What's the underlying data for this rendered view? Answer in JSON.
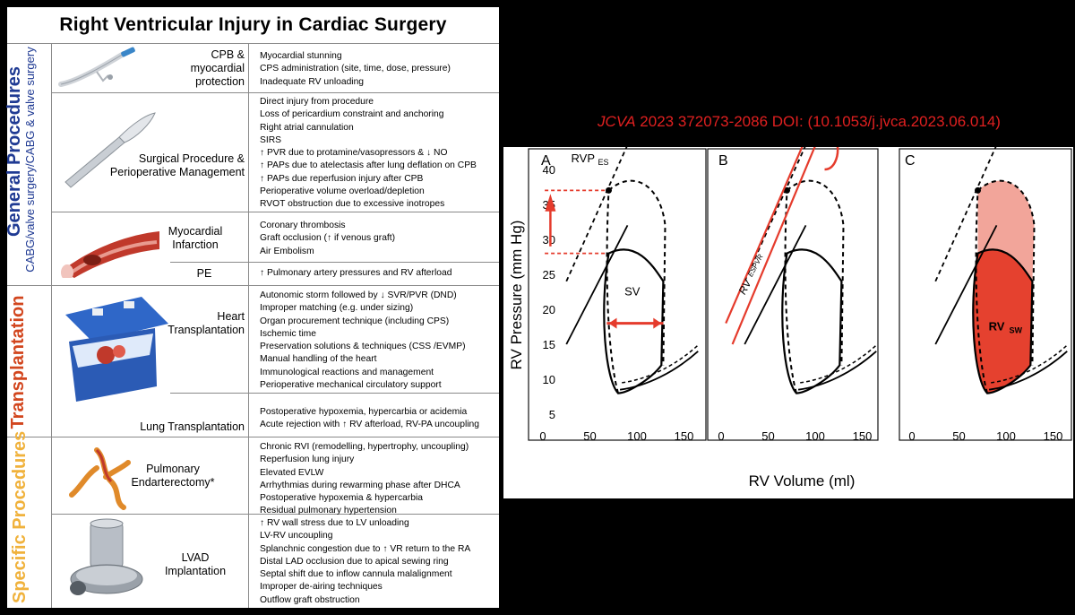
{
  "title": "Right  Ventricular  Injury in Cardiac Surgery",
  "groups": [
    {
      "label": "General Procedures",
      "sublabel": "CABG/valve surgery/CABG & valve surgery",
      "color": "#1f3a93"
    },
    {
      "label": "Transplantation",
      "sublabel": "",
      "color": "#d2461e"
    },
    {
      "label": "Specific Procedures",
      "sublabel": "",
      "color": "#f0b23c"
    }
  ],
  "rows": [
    {
      "category": "CPB &\nmyocardial\nprotection",
      "items": [
        "Myocardial stunning",
        "CPS administration (site, time, dose, pressure)",
        "Inadequate RV unloading"
      ]
    },
    {
      "category": "Surgical Procedure &\nPerioperative Management",
      "items": [
        "Direct injury from procedure",
        "Loss of pericardium constraint and anchoring",
        "Right atrial cannulation",
        "SIRS",
        "↑ PVR due to protamine/vasopressors & ↓ NO",
        "↑ PAPs due to atelectasis after lung deflation on CPB",
        "↑ PAPs due reperfusion injury after CPB",
        "Perioperative volume overload/depletion",
        "RVOT obstruction due to excessive inotropes"
      ]
    },
    {
      "category": "Myocardial\nInfarction",
      "items": [
        "Coronary thrombosis",
        "Graft occlusion (↑ if venous graft)",
        "Air Embolism"
      ]
    },
    {
      "category": "PE",
      "items": [
        "↑ Pulmonary artery pressures and RV afterload"
      ]
    },
    {
      "category": "Heart\nTransplantation",
      "items": [
        "Autonomic storm followed by ↓ SVR/PVR (DND)",
        "Improper matching (e.g. under sizing)",
        "Organ procurement technique (including CPS)",
        "Ischemic time",
        "Preservation solutions & techniques (CSS /EVMP)",
        "Manual handling of the heart",
        "Immunological reactions and management",
        "Perioperative mechanical circulatory support"
      ]
    },
    {
      "category": "Lung Transplantation",
      "items": [
        "Postoperative hypoxemia, hypercarbia or acidemia",
        "Acute rejection with ↑ RV afterload, RV-PA uncoupling"
      ]
    },
    {
      "category": "Pulmonary\nEndarterectomy*",
      "items": [
        "Chronic RVI (remodelling, hypertrophy, uncoupling)",
        "Reperfusion lung injury",
        "Elevated EVLW",
        "Arrhythmias during rewarming phase after DHCA",
        "Postoperative hypoxemia & hypercarbia",
        "Residual pulmonary hypertension"
      ]
    },
    {
      "category": "LVAD\nImplantation",
      "items": [
        "↑ RV wall stress due to LV unloading",
        "LV-RV uncoupling",
        "Splanchnic congestion due to ↑ VR return to the RA",
        "Distal LAD occlusion due to apical sewing ring",
        "Septal shift due to inflow cannula malalignment",
        "Improper de-airing techniques",
        "Outflow graft obstruction"
      ]
    }
  ],
  "citation": {
    "journal": "JCVA",
    "text": " 2023 372073-2086 DOI: (10.1053/j.jvca.2023.06.014)"
  },
  "chart_data": {
    "type": "line",
    "ylabel": "RV Pressure (mm Hg)",
    "xlabel": "RV Volume (ml)",
    "yticks": [
      5,
      10,
      15,
      20,
      25,
      30,
      35,
      40
    ],
    "xticks": [
      0,
      50,
      100,
      150
    ],
    "panels": [
      {
        "label": "A",
        "annotations": [
          "RVP",
          "ES",
          "SV"
        ]
      },
      {
        "label": "B",
        "annotations": [
          "RV",
          "ESPVR"
        ]
      },
      {
        "label": "C",
        "annotations": [
          "RV",
          "SW"
        ]
      }
    ],
    "colors": {
      "accent": "#e53b2c",
      "fill_light": "#f2a59a",
      "fill_dark": "#e5412f"
    }
  }
}
